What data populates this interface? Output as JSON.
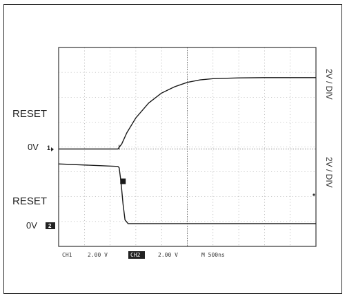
{
  "chart_data": {
    "type": "line",
    "title": "",
    "grid": true,
    "divisions": {
      "x": 10,
      "y": 8
    },
    "channels": [
      {
        "id": "ch1",
        "signal_label": "RESET",
        "ground_label": "0V",
        "ground_marker": "1",
        "scale_label": "2V / DIV",
        "baseline_div": 0,
        "points_div": [
          [
            0,
            0
          ],
          [
            2.3,
            0
          ],
          [
            2.45,
            0.2
          ],
          [
            2.65,
            0.65
          ],
          [
            3.0,
            1.25
          ],
          [
            3.5,
            1.85
          ],
          [
            4.0,
            2.25
          ],
          [
            4.5,
            2.5
          ],
          [
            5.0,
            2.68
          ],
          [
            5.5,
            2.78
          ],
          [
            6.0,
            2.83
          ],
          [
            7.0,
            2.86
          ],
          [
            8.0,
            2.87
          ],
          [
            10,
            2.87
          ]
        ]
      },
      {
        "id": "ch2",
        "signal_label": "RESET",
        "ground_label": "0V",
        "ground_marker": "2",
        "scale_label": "2V / DIV",
        "baseline_div": -3,
        "points_div": [
          [
            0,
            2.4
          ],
          [
            2.3,
            2.3
          ],
          [
            2.35,
            2.25
          ],
          [
            2.42,
            1.7
          ],
          [
            2.5,
            0.8
          ],
          [
            2.58,
            0.15
          ],
          [
            2.7,
            0
          ],
          [
            10,
            0
          ]
        ]
      }
    ],
    "trigger_marker_div": {
      "x": 2.5,
      "y": -1.3
    },
    "status": {
      "ch1": "CH1",
      "ch1_scale": "2.00 V",
      "ch2": "CH2",
      "ch2_scale": "2.00 V",
      "timebase": "M 500ns"
    }
  }
}
